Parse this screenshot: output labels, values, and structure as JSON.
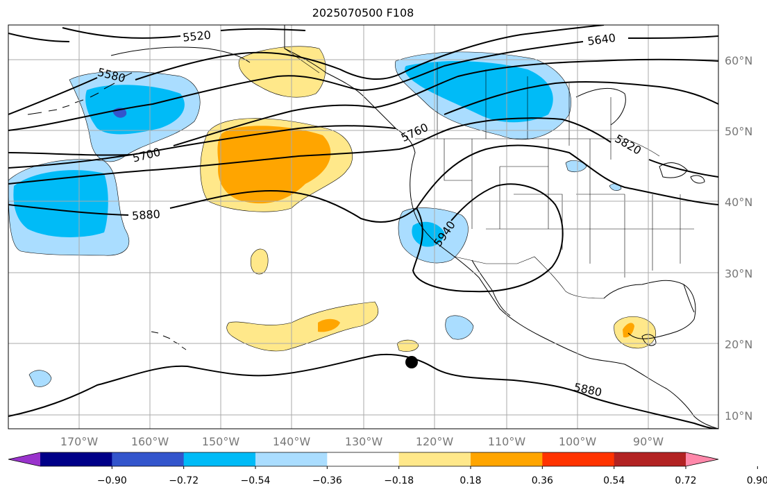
{
  "title": "2025070500 F108",
  "lat_labels": [
    "60°N",
    "50°N",
    "40°N",
    "30°N",
    "20°N",
    "10°N"
  ],
  "lon_labels": [
    "170°W",
    "160°W",
    "150°W",
    "140°W",
    "130°W",
    "120°W",
    "110°W",
    "100°W",
    "90°W"
  ],
  "colorbar": {
    "ticks": [
      "−0.90",
      "−0.72",
      "−0.54",
      "−0.36",
      "−0.18",
      "0.18",
      "0.36",
      "0.54",
      "0.72",
      "0.90"
    ],
    "colors": [
      "#9933cc",
      "#000088",
      "#3355cc",
      "#00bbf7",
      "#aaddff",
      "#ffffff",
      "#ffe88a",
      "#ffa500",
      "#ff3300",
      "#b22222",
      "#ff88aa"
    ]
  },
  "contour_labels": [
    "5520",
    "5580",
    "5640",
    "5700",
    "5760",
    "5820",
    "5880",
    "5940",
    "5880"
  ],
  "colors": {
    "contour": "#000000",
    "grid": "#aaaaaa",
    "coast": "#000000"
  }
}
